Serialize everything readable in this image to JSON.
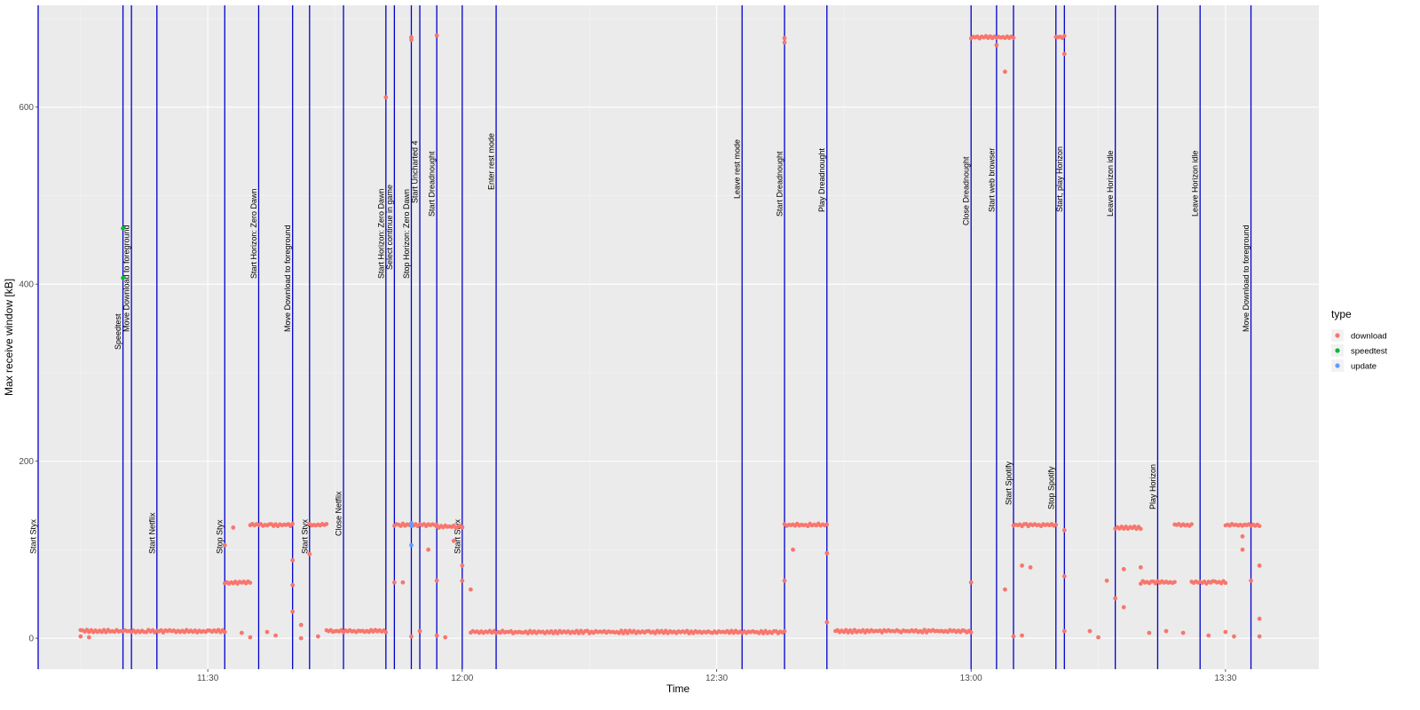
{
  "chart_data": {
    "type": "scatter",
    "xlabel": "Time",
    "ylabel": "Max receive window [kB]",
    "x_ticks": [
      "11:30",
      "12:00",
      "12:30",
      "13:00",
      "13:30"
    ],
    "y_ticks": [
      0,
      200,
      400,
      600
    ],
    "xlim": [
      "11:10",
      "13:41"
    ],
    "ylim": [
      -35,
      715
    ],
    "grid": true,
    "legend": {
      "title": "type",
      "placement": "right",
      "entries": [
        {
          "name": "download",
          "color": "#F8766D"
        },
        {
          "name": "speedtest",
          "color": "#00BA38"
        },
        {
          "name": "update",
          "color": "#619CFF"
        }
      ]
    },
    "events": [
      {
        "time": "11:10",
        "label": "Start Styx"
      },
      {
        "time": "11:20",
        "label": "Speedtest"
      },
      {
        "time": "11:21",
        "label": "Move Download to foreground"
      },
      {
        "time": "11:24",
        "label": "Start Netflix"
      },
      {
        "time": "11:32",
        "label": "Stop Styx"
      },
      {
        "time": "11:36",
        "label": "Start Horizon: Zero Dawn"
      },
      {
        "time": "11:40",
        "label": "Move Download to foreground"
      },
      {
        "time": "11:42",
        "label": "Start Styx"
      },
      {
        "time": "11:46",
        "label": "Close Netflix"
      },
      {
        "time": "11:51",
        "label": "Start Horizon: Zero Dawn"
      },
      {
        "time": "11:52",
        "label": "Select continue in game"
      },
      {
        "time": "11:54",
        "label": "Stop Horizon: Zero Dawn"
      },
      {
        "time": "11:55",
        "label": "Start Uncharted 4"
      },
      {
        "time": "11:57",
        "label": "Start Dreadnought"
      },
      {
        "time": "12:00",
        "label": "Start Styx"
      },
      {
        "time": "12:04",
        "label": "Enter rest mode"
      },
      {
        "time": "12:33",
        "label": "Leave rest mode"
      },
      {
        "time": "12:38",
        "label": "Start Dreadnought"
      },
      {
        "time": "12:43",
        "label": "Play Dreadnought"
      },
      {
        "time": "13:00",
        "label": "Close Dreadnought"
      },
      {
        "time": "13:03",
        "label": "Start web browser"
      },
      {
        "time": "13:05",
        "label": "Start Spotify"
      },
      {
        "time": "13:10",
        "label": "Stop Spotify"
      },
      {
        "time": "13:11",
        "label": "Start, play Horizon"
      },
      {
        "time": "13:17",
        "label": "Leave Horizon idle"
      },
      {
        "time": "13:22",
        "label": "Play Horizon"
      },
      {
        "time": "13:27",
        "label": "Leave Horizon idle"
      },
      {
        "time": "13:33",
        "label": "Move Download to foreground"
      }
    ],
    "series": [
      {
        "name": "download",
        "segments": [
          {
            "from": "11:15",
            "to": "11:32",
            "value": 8
          },
          {
            "from": "11:32",
            "to": "11:35",
            "value": 63
          },
          {
            "from": "11:35",
            "to": "11:40",
            "value": 128
          },
          {
            "from": "11:42",
            "to": "11:44",
            "value": 128
          },
          {
            "from": "11:44",
            "to": "11:51",
            "value": 8
          },
          {
            "from": "11:52",
            "to": "11:57",
            "value": 128
          },
          {
            "from": "11:57",
            "to": "12:00",
            "value": 126
          },
          {
            "from": "12:01",
            "to": "12:38",
            "value": 7
          },
          {
            "from": "12:38",
            "to": "12:43",
            "value": 128
          },
          {
            "from": "12:44",
            "to": "13:00",
            "value": 8
          },
          {
            "from": "13:00",
            "to": "13:05",
            "value": 679
          },
          {
            "from": "13:05",
            "to": "13:10",
            "value": 128
          },
          {
            "from": "13:10",
            "to": "13:11",
            "value": 679
          },
          {
            "from": "13:17",
            "to": "13:20",
            "value": 125
          },
          {
            "from": "13:20",
            "to": "13:24",
            "value": 63
          },
          {
            "from": "13:24",
            "to": "13:26",
            "value": 128
          },
          {
            "from": "13:26",
            "to": "13:30",
            "value": 63
          },
          {
            "from": "13:30",
            "to": "13:34",
            "value": 128
          }
        ],
        "points": [
          {
            "x": "11:15",
            "y": 2
          },
          {
            "x": "11:16",
            "y": 1
          },
          {
            "x": "11:32",
            "y": 105
          },
          {
            "x": "11:32",
            "y": 7
          },
          {
            "x": "11:33",
            "y": 125
          },
          {
            "x": "11:34",
            "y": 6
          },
          {
            "x": "11:35",
            "y": 1
          },
          {
            "x": "11:37",
            "y": 7
          },
          {
            "x": "11:38",
            "y": 3
          },
          {
            "x": "11:40",
            "y": 88
          },
          {
            "x": "11:40",
            "y": 60
          },
          {
            "x": "11:40",
            "y": 30
          },
          {
            "x": "11:41",
            "y": 15
          },
          {
            "x": "11:41",
            "y": 0
          },
          {
            "x": "11:42",
            "y": 95
          },
          {
            "x": "11:43",
            "y": 2
          },
          {
            "x": "11:51",
            "y": 611
          },
          {
            "x": "11:52",
            "y": 63
          },
          {
            "x": "11:53",
            "y": 63
          },
          {
            "x": "11:54",
            "y": 679
          },
          {
            "x": "11:54",
            "y": 676
          },
          {
            "x": "11:54",
            "y": 2
          },
          {
            "x": "11:55",
            "y": 8
          },
          {
            "x": "11:56",
            "y": 100
          },
          {
            "x": "11:57",
            "y": 681
          },
          {
            "x": "11:57",
            "y": 65
          },
          {
            "x": "11:57",
            "y": 3
          },
          {
            "x": "11:58",
            "y": 1
          },
          {
            "x": "11:59",
            "y": 110
          },
          {
            "x": "12:00",
            "y": 125
          },
          {
            "x": "12:00",
            "y": 82
          },
          {
            "x": "12:00",
            "y": 65
          },
          {
            "x": "12:01",
            "y": 55
          },
          {
            "x": "12:38",
            "y": 678
          },
          {
            "x": "12:38",
            "y": 673
          },
          {
            "x": "12:38",
            "y": 65
          },
          {
            "x": "12:39",
            "y": 100
          },
          {
            "x": "12:43",
            "y": 96
          },
          {
            "x": "12:43",
            "y": 18
          },
          {
            "x": "13:00",
            "y": 63
          },
          {
            "x": "13:03",
            "y": 670
          },
          {
            "x": "13:04",
            "y": 640
          },
          {
            "x": "13:04",
            "y": 55
          },
          {
            "x": "13:05",
            "y": 2
          },
          {
            "x": "13:06",
            "y": 82
          },
          {
            "x": "13:06",
            "y": 3
          },
          {
            "x": "13:07",
            "y": 80
          },
          {
            "x": "13:11",
            "y": 660
          },
          {
            "x": "13:11",
            "y": 122
          },
          {
            "x": "13:11",
            "y": 70
          },
          {
            "x": "13:11",
            "y": 8
          },
          {
            "x": "13:14",
            "y": 8
          },
          {
            "x": "13:15",
            "y": 1
          },
          {
            "x": "13:16",
            "y": 65
          },
          {
            "x": "13:17",
            "y": 45
          },
          {
            "x": "13:18",
            "y": 35
          },
          {
            "x": "13:18",
            "y": 78
          },
          {
            "x": "13:20",
            "y": 80
          },
          {
            "x": "13:21",
            "y": 6
          },
          {
            "x": "13:23",
            "y": 8
          },
          {
            "x": "13:25",
            "y": 6
          },
          {
            "x": "13:28",
            "y": 3
          },
          {
            "x": "13:30",
            "y": 7
          },
          {
            "x": "13:31",
            "y": 2
          },
          {
            "x": "13:32",
            "y": 115
          },
          {
            "x": "13:32",
            "y": 100
          },
          {
            "x": "13:33",
            "y": 65
          },
          {
            "x": "13:34",
            "y": 82
          },
          {
            "x": "13:34",
            "y": 22
          },
          {
            "x": "13:34",
            "y": 2
          }
        ]
      },
      {
        "name": "speedtest",
        "points": [
          {
            "x": "11:20",
            "y": 463
          },
          {
            "x": "11:20",
            "y": 407
          }
        ]
      },
      {
        "name": "update",
        "points": [
          {
            "x": "11:54",
            "y": 130
          },
          {
            "x": "11:54",
            "y": 127
          },
          {
            "x": "11:54",
            "y": 105
          }
        ]
      }
    ]
  }
}
